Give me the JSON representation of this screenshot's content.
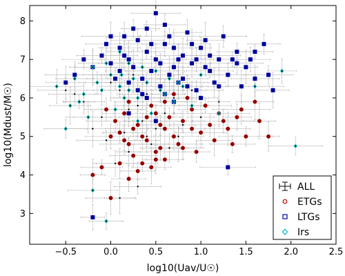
{
  "chart_data": {
    "type": "scatter",
    "xlabel": "log10(Uav/U☉)",
    "ylabel": "log10(Mdust/M☉)",
    "xlim": [
      -0.9,
      2.5
    ],
    "ylim": [
      2.2,
      8.4
    ],
    "xticks": [
      -0.5,
      0.0,
      0.5,
      1.0,
      1.5,
      2.0,
      2.5
    ],
    "yticks": [
      3,
      4,
      5,
      6,
      7,
      8
    ],
    "xtick_labels": [
      "−0.5",
      "0.0",
      "0.5",
      "1.0",
      "1.5",
      "2.0",
      "2.5"
    ],
    "ytick_labels": [
      "3",
      "4",
      "5",
      "6",
      "7",
      "8"
    ],
    "legend_position": "lower-right",
    "series": [
      {
        "name": "ALL",
        "marker": "errorbar",
        "color": "#000000",
        "errorbar_color": "#a0a0a0",
        "points": [
          [
            0.1,
            6.2
          ],
          [
            0.3,
            5.8
          ],
          [
            0.5,
            5.2
          ],
          [
            -0.1,
            5.5
          ],
          [
            0.7,
            6.0
          ],
          [
            0.2,
            4.6
          ],
          [
            0.4,
            5.0
          ],
          [
            0.0,
            6.4
          ],
          [
            0.6,
            5.6
          ],
          [
            -0.3,
            5.9
          ],
          [
            0.8,
            5.3
          ],
          [
            0.25,
            6.6
          ],
          [
            0.45,
            4.8
          ],
          [
            -0.05,
            4.9
          ],
          [
            0.15,
            5.1
          ],
          [
            1.0,
            5.5
          ],
          [
            -0.4,
            6.1
          ],
          [
            0.35,
            5.4
          ],
          [
            0.55,
            6.3
          ],
          [
            0.05,
            4.3
          ],
          [
            0.9,
            6.2
          ],
          [
            -0.2,
            5.2
          ],
          [
            0.65,
            4.7
          ],
          [
            1.2,
            5.9
          ],
          [
            0.3,
            3.7
          ],
          [
            0.1,
            3.4
          ],
          [
            -0.5,
            6.2
          ],
          [
            0.75,
            5.0
          ],
          [
            0.2,
            5.7
          ],
          [
            0.4,
            6.1
          ]
        ]
      },
      {
        "name": "ETGs",
        "marker": "circle",
        "color": "#8b0000",
        "points": [
          [
            0.1,
            5.1
          ],
          [
            0.2,
            4.8
          ],
          [
            0.3,
            5.3
          ],
          [
            0.4,
            4.9
          ],
          [
            0.5,
            5.6
          ],
          [
            0.6,
            5.2
          ],
          [
            0.7,
            5.0
          ],
          [
            0.8,
            5.4
          ],
          [
            0.9,
            5.7
          ],
          [
            1.0,
            5.1
          ],
          [
            1.1,
            5.3
          ],
          [
            1.2,
            5.6
          ],
          [
            1.3,
            5.2
          ],
          [
            1.4,
            5.5
          ],
          [
            1.5,
            5.0
          ],
          [
            1.6,
            5.9
          ],
          [
            1.75,
            5.0
          ],
          [
            0.25,
            4.5
          ],
          [
            0.35,
            4.3
          ],
          [
            0.45,
            5.8
          ],
          [
            0.55,
            4.7
          ],
          [
            0.65,
            5.5
          ],
          [
            0.75,
            4.8
          ],
          [
            0.15,
            4.9
          ],
          [
            0.05,
            5.4
          ],
          [
            -0.1,
            4.2
          ],
          [
            -0.2,
            4.0
          ],
          [
            0.0,
            5.0
          ],
          [
            0.3,
            4.1
          ],
          [
            0.5,
            4.6
          ],
          [
            0.85,
            6.0
          ],
          [
            0.95,
            4.6
          ],
          [
            1.05,
            5.8
          ],
          [
            1.15,
            4.9
          ],
          [
            1.25,
            5.4
          ],
          [
            1.35,
            4.8
          ],
          [
            0.2,
            5.9
          ],
          [
            0.4,
            5.5
          ],
          [
            0.6,
            4.4
          ],
          [
            0.7,
            6.1
          ],
          [
            0.1,
            4.3
          ],
          [
            -0.05,
            5.7
          ],
          [
            0.25,
            5.2
          ],
          [
            0.45,
            4.2
          ],
          [
            0.35,
            5.0
          ],
          [
            0.55,
            5.3
          ],
          [
            1.65,
            5.4
          ],
          [
            1.45,
            5.7
          ],
          [
            0.8,
            4.7
          ],
          [
            0.9,
            5.2
          ],
          [
            0.0,
            3.4
          ],
          [
            0.2,
            3.9
          ],
          [
            0.6,
            5.9
          ],
          [
            0.15,
            5.6
          ],
          [
            0.5,
            4.4
          ]
        ]
      },
      {
        "name": "LTGs",
        "marker": "square",
        "color": "#00008b",
        "points": [
          [
            0.3,
            7.5
          ],
          [
            0.4,
            7.2
          ],
          [
            0.5,
            7.0
          ],
          [
            0.6,
            7.4
          ],
          [
            0.7,
            6.8
          ],
          [
            0.8,
            7.1
          ],
          [
            0.9,
            6.9
          ],
          [
            1.0,
            7.3
          ],
          [
            1.1,
            6.7
          ],
          [
            1.2,
            7.0
          ],
          [
            1.3,
            6.6
          ],
          [
            1.4,
            7.2
          ],
          [
            1.5,
            6.8
          ],
          [
            1.6,
            6.5
          ],
          [
            1.7,
            7.4
          ],
          [
            0.2,
            7.0
          ],
          [
            0.1,
            7.3
          ],
          [
            0.0,
            6.9
          ],
          [
            -0.1,
            7.1
          ],
          [
            -0.2,
            6.8
          ],
          [
            -0.4,
            6.6
          ],
          [
            -0.3,
            7.0
          ],
          [
            0.35,
            6.5
          ],
          [
            0.45,
            6.7
          ],
          [
            0.55,
            6.3
          ],
          [
            0.65,
            7.6
          ],
          [
            0.75,
            6.4
          ],
          [
            0.85,
            7.7
          ],
          [
            0.95,
            6.2
          ],
          [
            1.05,
            7.5
          ],
          [
            1.15,
            6.4
          ],
          [
            1.25,
            7.6
          ],
          [
            1.35,
            7.0
          ],
          [
            1.45,
            6.3
          ],
          [
            1.55,
            7.0
          ],
          [
            0.25,
            7.8
          ],
          [
            0.5,
            8.2
          ],
          [
            0.15,
            7.6
          ],
          [
            0.05,
            6.5
          ],
          [
            -0.05,
            7.4
          ],
          [
            0.6,
            6.1
          ],
          [
            0.8,
            6.5
          ],
          [
            1.0,
            6.0
          ],
          [
            1.2,
            6.3
          ],
          [
            0.4,
            6.0
          ],
          [
            0.3,
            6.2
          ],
          [
            0.7,
            7.3
          ],
          [
            0.9,
            7.4
          ],
          [
            1.1,
            7.1
          ],
          [
            0.2,
            6.4
          ],
          [
            0.1,
            6.7
          ],
          [
            0.45,
            7.4
          ],
          [
            0.55,
            6.9
          ],
          [
            0.65,
            6.6
          ],
          [
            0.75,
            7.0
          ],
          [
            0.85,
            6.3
          ],
          [
            1.3,
            4.2
          ],
          [
            -0.5,
            6.4
          ],
          [
            -0.2,
            2.9
          ],
          [
            1.75,
            6.6
          ],
          [
            1.8,
            6.2
          ],
          [
            0.0,
            7.6
          ],
          [
            0.6,
            7.9
          ],
          [
            0.4,
            7.8
          ],
          [
            0.35,
            6.1
          ],
          [
            0.95,
            7.0
          ],
          [
            1.05,
            6.8
          ],
          [
            0.25,
            6.8
          ],
          [
            0.15,
            7.1
          ],
          [
            1.4,
            6.9
          ],
          [
            1.6,
            7.2
          ],
          [
            0.5,
            5.4
          ],
          [
            0.7,
            5.9
          ],
          [
            0.2,
            5.6
          ]
        ]
      },
      {
        "name": "Irs",
        "marker": "diamond",
        "color": "#00c8c8",
        "points": [
          [
            -0.6,
            6.3
          ],
          [
            -0.4,
            6.5
          ],
          [
            -0.3,
            6.1
          ],
          [
            -0.2,
            6.8
          ],
          [
            -0.1,
            6.2
          ],
          [
            0.0,
            6.6
          ],
          [
            0.1,
            6.3
          ],
          [
            0.2,
            6.9
          ],
          [
            0.3,
            6.0
          ],
          [
            0.4,
            6.4
          ],
          [
            0.5,
            6.7
          ],
          [
            0.6,
            6.1
          ],
          [
            0.7,
            5.9
          ],
          [
            0.8,
            6.3
          ],
          [
            0.9,
            5.8
          ],
          [
            1.0,
            6.6
          ],
          [
            -0.5,
            5.2
          ],
          [
            0.15,
            6.0
          ],
          [
            0.25,
            6.5
          ],
          [
            -0.15,
            6.4
          ],
          [
            0.05,
            5.7
          ],
          [
            -0.25,
            5.5
          ],
          [
            1.9,
            6.7
          ],
          [
            2.05,
            4.75
          ],
          [
            0.35,
            6.8
          ],
          [
            0.45,
            5.6
          ],
          [
            0.55,
            6.2
          ],
          [
            -0.35,
            5.9
          ],
          [
            -0.05,
            6.9
          ],
          [
            0.65,
            6.5
          ],
          [
            0.1,
            7.2
          ],
          [
            0.2,
            6.2
          ],
          [
            1.2,
            5.6
          ],
          [
            1.6,
            6.3
          ],
          [
            -0.45,
            5.8
          ],
          [
            0.3,
            5.4
          ],
          [
            -0.2,
            3.6
          ],
          [
            -0.05,
            2.8
          ],
          [
            0.75,
            6.4
          ],
          [
            0.12,
            6.6
          ]
        ]
      }
    ]
  }
}
